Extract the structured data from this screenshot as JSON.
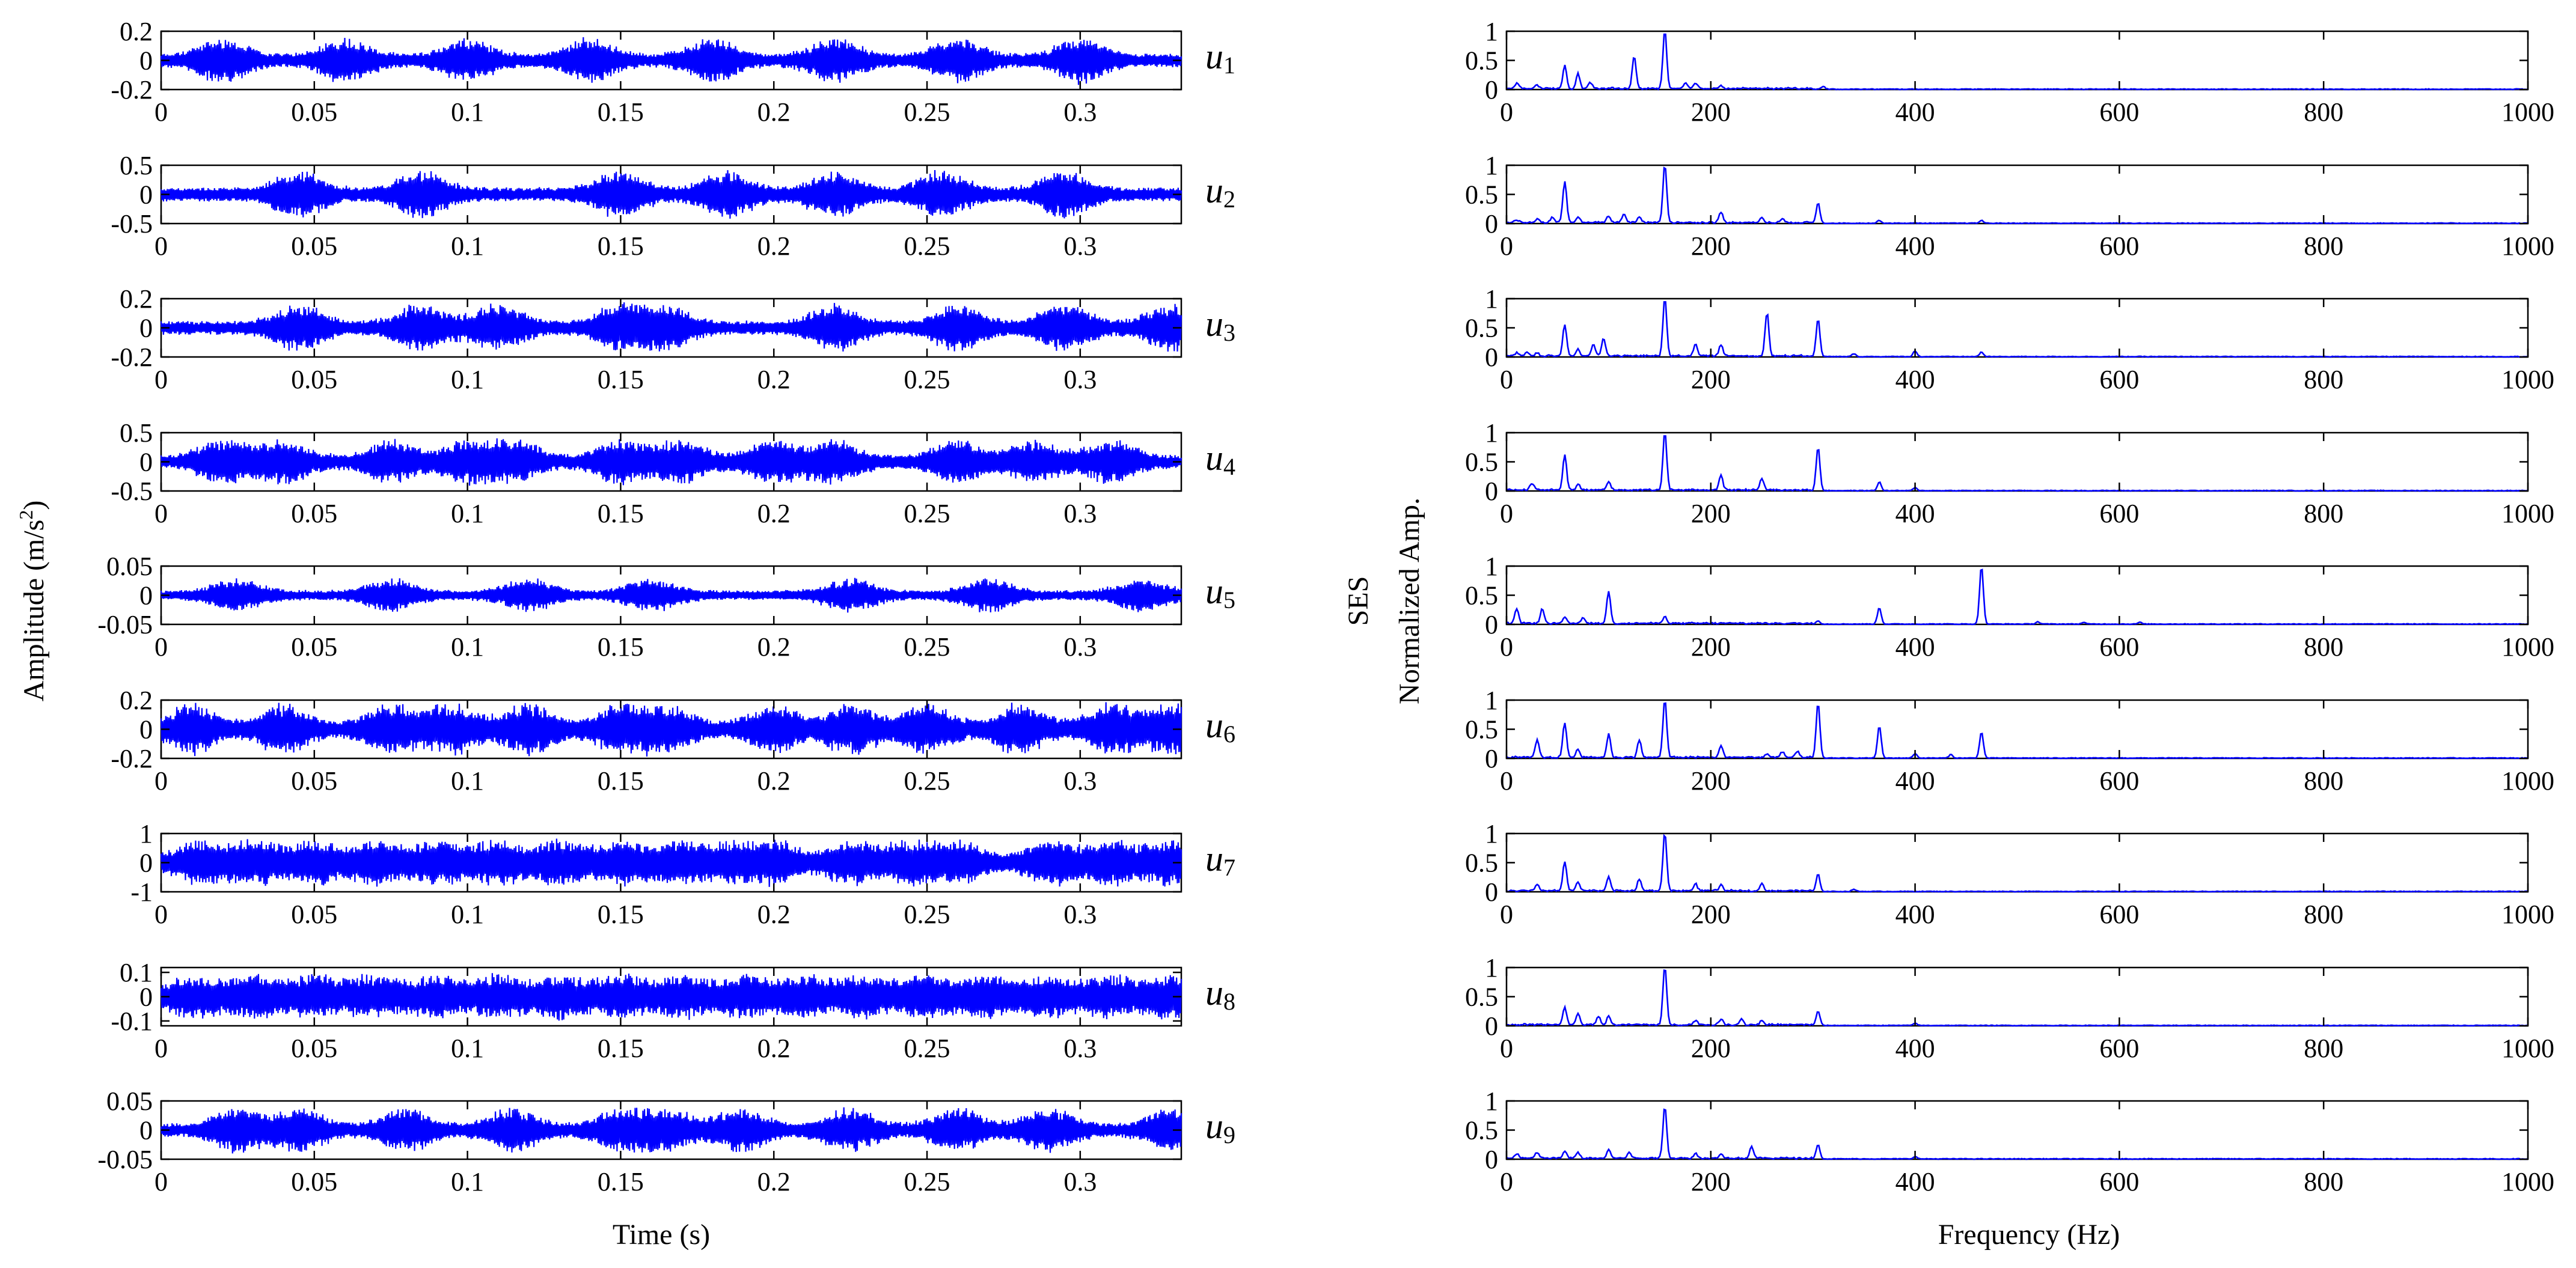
{
  "chart_data": [
    {
      "type": "line",
      "title": "",
      "panel": "time-domain modes",
      "xlabel": "Time (s)",
      "ylabel": "Amplitude (m/s²)",
      "ylabel_main": "Amplitude (m/s",
      "ylabel_sup": "2",
      "ylabel_close": ")",
      "xlim": [
        0,
        0.333
      ],
      "xtick_values": [
        0,
        0.05,
        0.1,
        0.15,
        0.2,
        0.25,
        0.3
      ],
      "xtick_labels": [
        "0",
        "0.05",
        "0.1",
        "0.15",
        "0.2",
        "0.25",
        "0.3"
      ],
      "line_color": "#0000ff",
      "series": [
        {
          "name": "u1",
          "label_main": "u",
          "label_sub": "1",
          "ylim": [
            -0.2,
            0.2
          ],
          "ytick_values": [
            -0.2,
            0,
            0.2
          ],
          "ytick_labels": [
            "-0.2",
            "0",
            "0.2"
          ],
          "envelope_peak": 0.17,
          "burst_times": [
            0.02,
            0.06,
            0.1,
            0.14,
            0.18,
            0.22,
            0.26,
            0.3
          ]
        },
        {
          "name": "u2",
          "label_main": "u",
          "label_sub": "2",
          "ylim": [
            -0.5,
            0.5
          ],
          "ytick_values": [
            -0.5,
            0,
            0.5
          ],
          "ytick_labels": [
            "-0.5",
            "0",
            "0.5"
          ],
          "envelope_peak": 0.45,
          "burst_times": [
            0.045,
            0.085,
            0.15,
            0.185,
            0.22,
            0.255,
            0.295
          ]
        },
        {
          "name": "u3",
          "label_main": "u",
          "label_sub": "3",
          "ylim": [
            -0.2,
            0.2
          ],
          "ytick_values": [
            -0.2,
            0,
            0.2
          ],
          "ytick_labels": [
            "-0.2",
            "0",
            "0.2"
          ],
          "envelope_peak": 0.18,
          "burst_times": [
            0.045,
            0.085,
            0.11,
            0.15,
            0.165,
            0.22,
            0.26,
            0.295,
            0.33
          ]
        },
        {
          "name": "u4",
          "label_main": "u",
          "label_sub": "4",
          "ylim": [
            -0.5,
            0.5
          ],
          "ytick_values": [
            -0.5,
            0,
            0.5
          ],
          "ytick_labels": [
            "-0.5",
            "0",
            "0.5"
          ],
          "envelope_peak": 0.42,
          "burst_times": [
            0.02,
            0.04,
            0.075,
            0.1,
            0.115,
            0.15,
            0.17,
            0.2,
            0.22,
            0.26,
            0.285,
            0.31
          ]
        },
        {
          "name": "u5",
          "label_main": "u",
          "label_sub": "5",
          "ylim": [
            -0.05,
            0.05
          ],
          "ytick_values": [
            -0.05,
            0,
            0.05
          ],
          "ytick_labels": [
            "-0.05",
            "0",
            "0.05"
          ],
          "envelope_peak": 0.032,
          "burst_times": [
            0.025,
            0.075,
            0.12,
            0.16,
            0.225,
            0.27,
            0.32
          ]
        },
        {
          "name": "u6",
          "label_main": "u",
          "label_sub": "6",
          "ylim": [
            -0.2,
            0.2
          ],
          "ytick_values": [
            -0.2,
            0,
            0.2
          ],
          "ytick_labels": [
            "-0.2",
            "0",
            "0.2"
          ],
          "envelope_peak": 0.19,
          "burst_times": [
            0.01,
            0.04,
            0.075,
            0.095,
            0.12,
            0.15,
            0.165,
            0.2,
            0.225,
            0.25,
            0.28,
            0.31,
            0.33
          ]
        },
        {
          "name": "u7",
          "label_main": "u",
          "label_sub": "7",
          "ylim": [
            -1,
            1
          ],
          "ytick_values": [
            -1,
            0,
            1
          ],
          "ytick_labels": [
            "-1",
            "0",
            "1"
          ],
          "envelope_peak": 0.85,
          "burst_times": [
            0.012,
            0.03,
            0.05,
            0.07,
            0.09,
            0.11,
            0.13,
            0.15,
            0.17,
            0.188,
            0.2,
            0.225,
            0.245,
            0.26,
            0.29,
            0.31,
            0.33
          ]
        },
        {
          "name": "u8",
          "label_main": "u",
          "label_sub": "8",
          "ylim": [
            -0.12,
            0.12
          ],
          "ytick_values": [
            -0.1,
            0,
            0.1
          ],
          "ytick_labels": [
            "-0.1",
            "0",
            "0.1"
          ],
          "envelope_peak": 0.1,
          "burst_times": [
            0.01,
            0.03,
            0.05,
            0.07,
            0.09,
            0.11,
            0.13,
            0.15,
            0.17,
            0.19,
            0.21,
            0.23,
            0.25,
            0.27,
            0.29,
            0.31,
            0.33
          ]
        },
        {
          "name": "u9",
          "label_main": "u",
          "label_sub": "9",
          "ylim": [
            -0.05,
            0.05
          ],
          "ytick_values": [
            -0.05,
            0,
            0.05
          ],
          "ytick_labels": [
            "-0.05",
            "0",
            "0.05"
          ],
          "envelope_peak": 0.042,
          "burst_times": [
            0.025,
            0.045,
            0.08,
            0.115,
            0.15,
            0.165,
            0.19,
            0.225,
            0.26,
            0.29,
            0.33
          ]
        }
      ]
    },
    {
      "type": "line",
      "title": "",
      "panel": "squared envelope spectra",
      "xlabel": "Frequency (Hz)",
      "ylabel_line1": "SES",
      "ylabel_line2": "Normalized Amp.",
      "xlim": [
        0,
        1000
      ],
      "ylim": [
        0,
        1
      ],
      "xtick_values": [
        0,
        200,
        400,
        600,
        800,
        1000
      ],
      "xtick_labels": [
        "0",
        "200",
        "400",
        "600",
        "800",
        "1000"
      ],
      "ytick_values": [
        0,
        0.5,
        1
      ],
      "ytick_labels": [
        "0",
        "0.5",
        "1"
      ],
      "line_color": "#0000ff",
      "series": [
        {
          "name": "SES u1",
          "peaks": [
            [
              10,
              0.1
            ],
            [
              30,
              0.05
            ],
            [
              57,
              0.4
            ],
            [
              70,
              0.25
            ],
            [
              82,
              0.1
            ],
            [
              125,
              0.55
            ],
            [
              155,
              1.0
            ],
            [
              175,
              0.1
            ],
            [
              185,
              0.1
            ],
            [
              210,
              0.06
            ],
            [
              310,
              0.05
            ]
          ]
        },
        {
          "name": "SES u2",
          "peaks": [
            [
              10,
              0.05
            ],
            [
              30,
              0.06
            ],
            [
              45,
              0.1
            ],
            [
              57,
              0.7
            ],
            [
              70,
              0.1
            ],
            [
              100,
              0.12
            ],
            [
              115,
              0.15
            ],
            [
              130,
              0.1
            ],
            [
              155,
              1.0
            ],
            [
              210,
              0.18
            ],
            [
              250,
              0.08
            ],
            [
              270,
              0.06
            ],
            [
              305,
              0.35
            ],
            [
              365,
              0.05
            ],
            [
              465,
              0.05
            ]
          ]
        },
        {
          "name": "SES u3",
          "peaks": [
            [
              10,
              0.05
            ],
            [
              20,
              0.06
            ],
            [
              30,
              0.05
            ],
            [
              57,
              0.55
            ],
            [
              70,
              0.12
            ],
            [
              85,
              0.2
            ],
            [
              95,
              0.3
            ],
            [
              155,
              1.0
            ],
            [
              185,
              0.2
            ],
            [
              210,
              0.2
            ],
            [
              255,
              0.75
            ],
            [
              305,
              0.65
            ],
            [
              340,
              0.05
            ],
            [
              400,
              0.1
            ],
            [
              465,
              0.08
            ]
          ]
        },
        {
          "name": "SES u4",
          "peaks": [
            [
              25,
              0.12
            ],
            [
              57,
              0.6
            ],
            [
              70,
              0.1
            ],
            [
              100,
              0.15
            ],
            [
              155,
              1.0
            ],
            [
              210,
              0.25
            ],
            [
              250,
              0.2
            ],
            [
              305,
              0.75
            ],
            [
              365,
              0.15
            ],
            [
              400,
              0.05
            ]
          ]
        },
        {
          "name": "SES u5",
          "peaks": [
            [
              10,
              0.25
            ],
            [
              35,
              0.25
            ],
            [
              57,
              0.1
            ],
            [
              75,
              0.1
            ],
            [
              100,
              0.55
            ],
            [
              155,
              0.12
            ],
            [
              305,
              0.06
            ],
            [
              365,
              0.28
            ],
            [
              465,
              1.0
            ],
            [
              520,
              0.04
            ],
            [
              565,
              0.03
            ],
            [
              620,
              0.03
            ]
          ]
        },
        {
          "name": "SES u6",
          "peaks": [
            [
              30,
              0.3
            ],
            [
              57,
              0.6
            ],
            [
              70,
              0.15
            ],
            [
              100,
              0.4
            ],
            [
              130,
              0.3
            ],
            [
              155,
              1.0
            ],
            [
              210,
              0.2
            ],
            [
              255,
              0.06
            ],
            [
              270,
              0.1
            ],
            [
              285,
              0.1
            ],
            [
              305,
              0.95
            ],
            [
              365,
              0.55
            ],
            [
              400,
              0.08
            ],
            [
              435,
              0.06
            ],
            [
              465,
              0.45
            ]
          ]
        },
        {
          "name": "SES u7",
          "peaks": [
            [
              30,
              0.1
            ],
            [
              57,
              0.5
            ],
            [
              70,
              0.15
            ],
            [
              100,
              0.25
            ],
            [
              130,
              0.2
            ],
            [
              155,
              1.0
            ],
            [
              185,
              0.12
            ],
            [
              210,
              0.1
            ],
            [
              250,
              0.12
            ],
            [
              305,
              0.3
            ],
            [
              340,
              0.04
            ]
          ]
        },
        {
          "name": "SES u8",
          "peaks": [
            [
              57,
              0.3
            ],
            [
              70,
              0.2
            ],
            [
              90,
              0.15
            ],
            [
              100,
              0.15
            ],
            [
              155,
              1.0
            ],
            [
              185,
              0.08
            ],
            [
              210,
              0.1
            ],
            [
              230,
              0.1
            ],
            [
              250,
              0.08
            ],
            [
              305,
              0.25
            ],
            [
              400,
              0.04
            ]
          ]
        },
        {
          "name": "SES u9",
          "peaks": [
            [
              10,
              0.08
            ],
            [
              30,
              0.1
            ],
            [
              57,
              0.12
            ],
            [
              70,
              0.1
            ],
            [
              100,
              0.15
            ],
            [
              120,
              0.1
            ],
            [
              155,
              0.9
            ],
            [
              185,
              0.08
            ],
            [
              210,
              0.08
            ],
            [
              240,
              0.2
            ],
            [
              305,
              0.25
            ],
            [
              400,
              0.04
            ]
          ]
        }
      ]
    }
  ]
}
